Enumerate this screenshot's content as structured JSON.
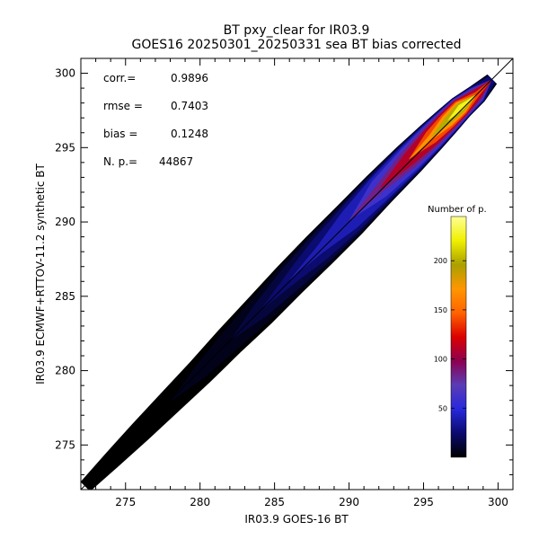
{
  "chart_data": {
    "type": "heatmap",
    "title": "BT pxy_clear for IR03.9",
    "subtitle": "GOES16 20250301_20250331 sea BT bias corrected",
    "xlabel": "IR03.9 GOES-16 BT",
    "ylabel": "IR03.9 ECMWF+RTTOV-11.2 synthetic BT",
    "xlim": [
      272,
      301
    ],
    "ylim": [
      272,
      301
    ],
    "x_ticks": [
      "275",
      "280",
      "285",
      "290",
      "295",
      "300"
    ],
    "y_ticks": [
      "275",
      "280",
      "285",
      "290",
      "295",
      "300"
    ],
    "stats": [
      {
        "label": "corr.=",
        "value": "0.9896"
      },
      {
        "label": "rmse =",
        "value": "0.7403"
      },
      {
        "label": "bias =",
        "value": "0.1248"
      },
      {
        "label": "N. p.=",
        "value": "44867"
      }
    ],
    "colorbar": {
      "title": "Number of p.",
      "range": [
        0,
        245
      ],
      "ticks": [
        "50",
        "100",
        "150",
        "200"
      ],
      "colors": [
        "#000000",
        "#0a0a6e",
        "#2828dc",
        "#5a3cb4",
        "#8c0050",
        "#dc0000",
        "#ff6400",
        "#ff9600",
        "#aaa000",
        "#f0f000",
        "#ffff96"
      ]
    },
    "identity_line": true,
    "density_ridge": [
      {
        "x": 272.3,
        "y": 272.2,
        "half_width": 0.45,
        "peak": 1
      },
      {
        "x": 274,
        "y": 273.9,
        "half_width": 0.6,
        "peak": 2
      },
      {
        "x": 276,
        "y": 275.9,
        "half_width": 0.75,
        "peak": 3
      },
      {
        "x": 278,
        "y": 277.9,
        "half_width": 0.85,
        "peak": 5
      },
      {
        "x": 280,
        "y": 279.9,
        "half_width": 0.95,
        "peak": 8
      },
      {
        "x": 282,
        "y": 282.0,
        "half_width": 1.05,
        "peak": 12
      },
      {
        "x": 284,
        "y": 284.0,
        "half_width": 1.15,
        "peak": 18
      },
      {
        "x": 286,
        "y": 286.1,
        "half_width": 1.2,
        "peak": 28
      },
      {
        "x": 288,
        "y": 288.1,
        "half_width": 1.25,
        "peak": 42
      },
      {
        "x": 290,
        "y": 290.1,
        "half_width": 1.25,
        "peak": 60
      },
      {
        "x": 292,
        "y": 292.2,
        "half_width": 1.2,
        "peak": 90
      },
      {
        "x": 294,
        "y": 294.2,
        "half_width": 1.15,
        "peak": 130
      },
      {
        "x": 295.5,
        "y": 295.7,
        "half_width": 1.05,
        "peak": 175
      },
      {
        "x": 296.6,
        "y": 296.8,
        "half_width": 0.95,
        "peak": 215
      },
      {
        "x": 297.5,
        "y": 297.7,
        "half_width": 0.85,
        "peak": 240
      },
      {
        "x": 298.6,
        "y": 298.6,
        "half_width": 0.7,
        "peak": 150
      },
      {
        "x": 299.6,
        "y": 299.6,
        "half_width": 0.45,
        "peak": 40
      }
    ]
  }
}
